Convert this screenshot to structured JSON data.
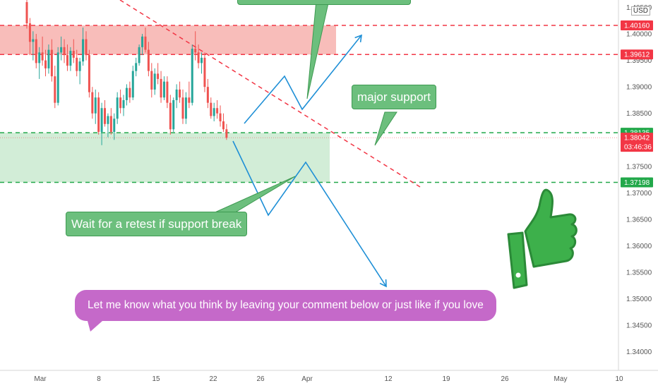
{
  "chart_data": {
    "type": "candlestick",
    "symbol_currency": "USD",
    "x_ticks": [
      "Mar",
      "8",
      "15",
      "22",
      "26",
      "Apr",
      "12",
      "19",
      "26",
      "May",
      "10"
    ],
    "y_ticks": [
      "1.40500",
      "1.40000",
      "1.39500",
      "1.39000",
      "1.38500",
      "1.38000",
      "1.37500",
      "1.37000",
      "1.36500",
      "1.36000",
      "1.35500",
      "1.35000",
      "1.34500",
      "1.34000"
    ],
    "ylim": [
      1.3365,
      1.4064
    ],
    "price_levels": [
      {
        "label": "1.40160",
        "value": 1.4016,
        "color": "#f23645",
        "style": "dashed"
      },
      {
        "label": "1.39612",
        "value": 1.39612,
        "color": "#f23645",
        "style": "dashed"
      },
      {
        "label": "1.38135",
        "value": 1.38135,
        "color": "#22a84a",
        "style": "dashed"
      },
      {
        "label": "1.37198",
        "value": 1.37198,
        "color": "#22a84a",
        "style": "dashed"
      }
    ],
    "last_price": {
      "label": "1.38042",
      "countdown": "03:46:36",
      "value": 1.38042,
      "color": "#f23645"
    },
    "zones": [
      {
        "name": "resistance-zone",
        "from": 1.39612,
        "to": 1.4016,
        "color": "#f7b6b3"
      },
      {
        "name": "support-zone",
        "from": 1.37198,
        "to": 1.38135,
        "color": "#cdebd3"
      }
    ],
    "candles": [
      [
        1.406,
        1.4064,
        1.401,
        1.402
      ],
      [
        1.402,
        1.403,
        1.396,
        1.3985
      ],
      [
        1.3985,
        1.4005,
        1.395,
        1.399
      ],
      [
        1.399,
        1.4,
        1.3935,
        1.3945
      ],
      [
        1.3945,
        1.3975,
        1.3915,
        1.3965
      ],
      [
        1.3965,
        1.3995,
        1.394,
        1.395
      ],
      [
        1.395,
        1.397,
        1.392,
        1.3935
      ],
      [
        1.3935,
        1.398,
        1.3925,
        1.397
      ],
      [
        1.397,
        1.399,
        1.391,
        1.392
      ],
      [
        1.392,
        1.394,
        1.386,
        1.387
      ],
      [
        1.387,
        1.3975,
        1.3865,
        1.3965
      ],
      [
        1.3965,
        1.3995,
        1.395,
        1.3975
      ],
      [
        1.3975,
        1.399,
        1.3945,
        1.396
      ],
      [
        1.396,
        1.398,
        1.393,
        1.394
      ],
      [
        1.394,
        1.3975,
        1.393,
        1.3968
      ],
      [
        1.3968,
        1.399,
        1.3945,
        1.3955
      ],
      [
        1.3955,
        1.397,
        1.392,
        1.393
      ],
      [
        1.393,
        1.3955,
        1.3905,
        1.3948
      ],
      [
        1.3948,
        1.4012,
        1.394,
        1.399
      ],
      [
        1.399,
        1.4005,
        1.395,
        1.396
      ],
      [
        1.396,
        1.397,
        1.388,
        1.389
      ],
      [
        1.389,
        1.39,
        1.384,
        1.385
      ],
      [
        1.385,
        1.3895,
        1.383,
        1.388
      ],
      [
        1.388,
        1.389,
        1.381,
        1.3815
      ],
      [
        1.3815,
        1.387,
        1.379,
        1.386
      ],
      [
        1.386,
        1.3875,
        1.3825,
        1.383
      ],
      [
        1.383,
        1.385,
        1.3805,
        1.3845
      ],
      [
        1.3845,
        1.386,
        1.381,
        1.3815
      ],
      [
        1.3815,
        1.385,
        1.38,
        1.384
      ],
      [
        1.384,
        1.389,
        1.383,
        1.388
      ],
      [
        1.388,
        1.3895,
        1.385,
        1.386
      ],
      [
        1.386,
        1.3885,
        1.3845,
        1.3875
      ],
      [
        1.3875,
        1.3905,
        1.3865,
        1.3898
      ],
      [
        1.3898,
        1.391,
        1.387,
        1.388
      ],
      [
        1.388,
        1.394,
        1.3875,
        1.393
      ],
      [
        1.393,
        1.3955,
        1.392,
        1.3945
      ],
      [
        1.3945,
        1.398,
        1.394,
        1.3975
      ],
      [
        1.3975,
        1.4,
        1.396,
        1.3995
      ],
      [
        1.3995,
        1.4012,
        1.3965,
        1.397
      ],
      [
        1.397,
        1.3985,
        1.392,
        1.393
      ],
      [
        1.393,
        1.3945,
        1.388,
        1.3895
      ],
      [
        1.3895,
        1.3935,
        1.3885,
        1.3925
      ],
      [
        1.3925,
        1.3945,
        1.3905,
        1.3915
      ],
      [
        1.3915,
        1.393,
        1.387,
        1.388
      ],
      [
        1.388,
        1.392,
        1.3875,
        1.391
      ],
      [
        1.391,
        1.392,
        1.386,
        1.387
      ],
      [
        1.387,
        1.3885,
        1.381,
        1.382
      ],
      [
        1.382,
        1.388,
        1.3815,
        1.3875
      ],
      [
        1.3875,
        1.3905,
        1.386,
        1.3895
      ],
      [
        1.3895,
        1.391,
        1.387,
        1.388
      ],
      [
        1.388,
        1.3895,
        1.383,
        1.384
      ],
      [
        1.384,
        1.389,
        1.383,
        1.388
      ],
      [
        1.388,
        1.391,
        1.386,
        1.387
      ],
      [
        1.387,
        1.398,
        1.3865,
        1.3972
      ],
      [
        1.3972,
        1.4005,
        1.395,
        1.3965
      ],
      [
        1.3965,
        1.398,
        1.3935,
        1.3945
      ],
      [
        1.3945,
        1.3965,
        1.3925,
        1.3955
      ],
      [
        1.3955,
        1.3965,
        1.389,
        1.39
      ],
      [
        1.39,
        1.3915,
        1.386,
        1.387
      ],
      [
        1.387,
        1.388,
        1.384,
        1.3845
      ],
      [
        1.3845,
        1.387,
        1.3835,
        1.386
      ],
      [
        1.386,
        1.3875,
        1.384,
        1.385
      ],
      [
        1.385,
        1.3865,
        1.3825,
        1.3835
      ],
      [
        1.3835,
        1.385,
        1.3815,
        1.382
      ],
      [
        1.382,
        1.383,
        1.38,
        1.3804
      ]
    ],
    "projections": [
      {
        "name": "bullish-path",
        "points": [
          [
            "24",
            1.3812
          ],
          [
            "27",
            1.391
          ],
          [
            "Mar 30",
            1.385
          ],
          [
            "Apr 7",
            1.4
          ]
        ],
        "color": "#1e8fd6"
      },
      {
        "name": "bearish-path",
        "points": [
          [
            "24",
            1.379
          ],
          [
            "27",
            1.365
          ],
          [
            "Mar 31",
            1.3752
          ],
          [
            "Apr 12",
            1.3512
          ]
        ],
        "color": "#1e8fd6"
      }
    ]
  },
  "annotations": {
    "major_support": "major support",
    "retest": "Wait for a retest if support break",
    "comment": "Let me know what you think by leaving your comment below or just like if you love"
  },
  "colors": {
    "bull": "#26a69a",
    "bear": "#ef5350",
    "resistance": "#f23645",
    "support": "#22a84a",
    "projection": "#1e8fd6",
    "callout_green": "#6cbf7d",
    "callout_purple": "#c569c9",
    "thumb": "#3db04b"
  },
  "icons": {
    "thumb": "thumbs-up-icon"
  }
}
